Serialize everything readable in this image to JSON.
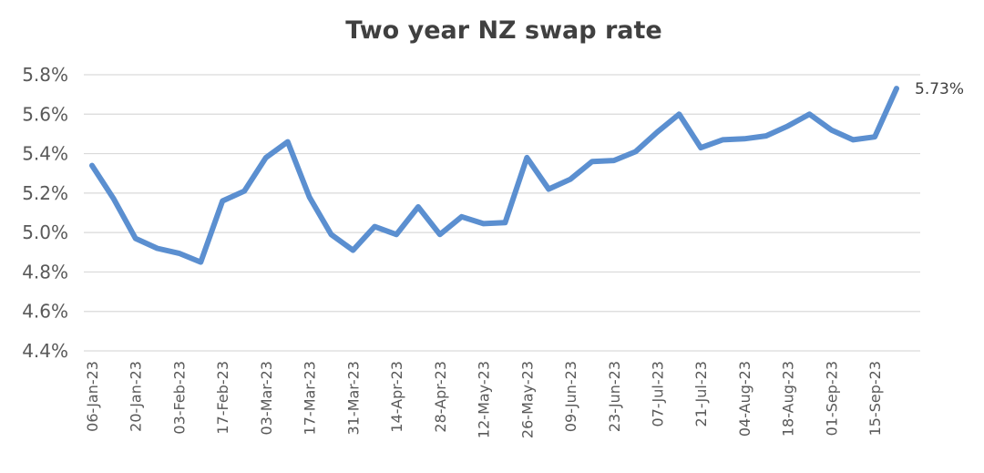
{
  "chart_data": {
    "type": "line",
    "title": "Two year NZ swap rate",
    "xlabel": "",
    "ylabel": "",
    "ylim": [
      4.4,
      5.8
    ],
    "ytick_labels": [
      "4.4%",
      "4.6%",
      "4.8%",
      "5.0%",
      "5.2%",
      "5.4%",
      "5.6%",
      "5.8%"
    ],
    "ytick_values": [
      4.4,
      4.6,
      4.8,
      5.0,
      5.2,
      5.4,
      5.6,
      5.8
    ],
    "grid": true,
    "legend": "none",
    "x": [
      "06-Jan-23",
      "13-Jan-23",
      "20-Jan-23",
      "27-Jan-23",
      "03-Feb-23",
      "10-Feb-23",
      "17-Feb-23",
      "24-Feb-23",
      "03-Mar-23",
      "10-Mar-23",
      "17-Mar-23",
      "24-Mar-23",
      "31-Mar-23",
      "07-Apr-23",
      "14-Apr-23",
      "21-Apr-23",
      "28-Apr-23",
      "05-May-23",
      "12-May-23",
      "19-May-23",
      "26-May-23",
      "02-Jun-23",
      "09-Jun-23",
      "16-Jun-23",
      "23-Jun-23",
      "30-Jun-23",
      "07-Jul-23",
      "14-Jul-23",
      "21-Jul-23",
      "28-Jul-23",
      "04-Aug-23",
      "11-Aug-23",
      "18-Aug-23",
      "25-Aug-23",
      "01-Sep-23",
      "08-Sep-23",
      "15-Sep-23",
      "22-Sep-23"
    ],
    "xtick_labels": [
      "06-Jan-23",
      "20-Jan-23",
      "03-Feb-23",
      "17-Feb-23",
      "03-Mar-23",
      "17-Mar-23",
      "31-Mar-23",
      "14-Apr-23",
      "28-Apr-23",
      "12-May-23",
      "26-May-23",
      "09-Jun-23",
      "23-Jun-23",
      "07-Jul-23",
      "21-Jul-23",
      "04-Aug-23",
      "18-Aug-23",
      "01-Sep-23",
      "15-Sep-23"
    ],
    "series": [
      {
        "name": "",
        "color": "#5b8fd0",
        "values": [
          5.34,
          5.17,
          4.97,
          4.92,
          4.895,
          4.85,
          5.16,
          5.21,
          5.38,
          5.46,
          5.18,
          4.99,
          4.91,
          5.03,
          4.99,
          5.13,
          4.99,
          5.08,
          5.045,
          5.05,
          5.38,
          5.22,
          5.27,
          5.36,
          5.365,
          5.41,
          5.51,
          5.6,
          5.43,
          5.47,
          5.475,
          5.49,
          5.54,
          5.6,
          5.52,
          5.47,
          5.485,
          5.73
        ]
      }
    ],
    "annotations": [
      {
        "text": "5.73%",
        "x": "22-Sep-23",
        "y": 5.73
      }
    ]
  }
}
